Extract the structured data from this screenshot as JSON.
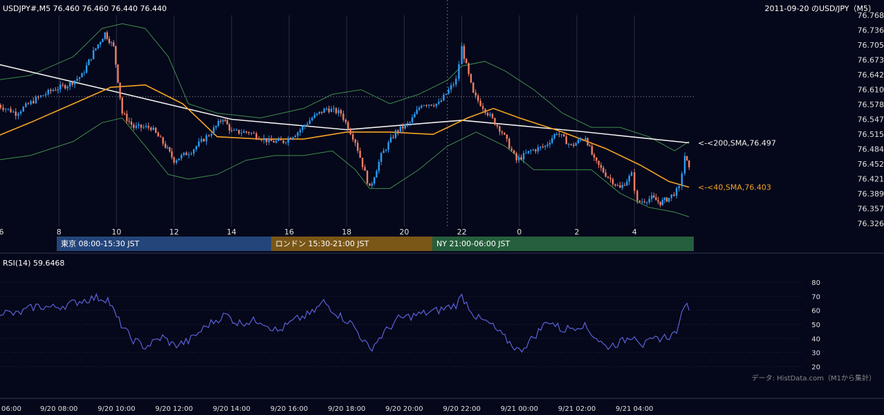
{
  "header": {
    "symbol_line": "USDJPY#,M5 76.460 76.460 76.440 76.440",
    "title": "2011-09-20 のUSD/JPY（M5）"
  },
  "sessions": [
    {
      "label": "東京 08:00-15:30 JST"
    },
    {
      "label": "ロンドン 15:30-21:00 JST"
    },
    {
      "label": "NY 21:00-06:00 JST"
    }
  ],
  "rsi_label": "RSI(14) 59.6468",
  "source_note": "データ: HistData.com（M1から集計）",
  "colors": {
    "background": "#05071a",
    "bull": "#2a9df4",
    "bear": "#ef7f63",
    "sma40": "#f5a623",
    "sma200": "#f2f2f2",
    "bollinger": "#3f8f4c",
    "rsi": "#5a63d8"
  },
  "chart_data": [
    {
      "type": "candlestick",
      "symbol": "USDJPY#",
      "timeframe": "M5",
      "x_tick_labels": [
        "6",
        "8",
        "10",
        "12",
        "14",
        "16",
        "18",
        "20",
        "22",
        "0",
        "2",
        "4"
      ],
      "y_tick_labels": [
        "76.768",
        "76.736",
        "76.705",
        "76.673",
        "76.642",
        "76.610",
        "76.578",
        "76.547",
        "76.515",
        "76.484",
        "76.452",
        "76.421",
        "76.389",
        "76.357",
        "76.326"
      ],
      "ylim": [
        76.326,
        76.768
      ],
      "reference_level": 76.595,
      "key_prices": [
        {
          "t": 5.8,
          "p": 76.58
        },
        {
          "t": 6.5,
          "p": 76.56
        },
        {
          "t": 7.2,
          "p": 76.59
        },
        {
          "t": 7.8,
          "p": 76.61
        },
        {
          "t": 8.3,
          "p": 76.62
        },
        {
          "t": 8.8,
          "p": 76.64
        },
        {
          "t": 9.2,
          "p": 76.69
        },
        {
          "t": 9.6,
          "p": 76.73
        },
        {
          "t": 9.9,
          "p": 76.7
        },
        {
          "t": 10.2,
          "p": 76.56
        },
        {
          "t": 10.6,
          "p": 76.53
        },
        {
          "t": 11.2,
          "p": 76.53
        },
        {
          "t": 11.7,
          "p": 76.49
        },
        {
          "t": 12.0,
          "p": 76.46
        },
        {
          "t": 12.6,
          "p": 76.48
        },
        {
          "t": 13.3,
          "p": 76.52
        },
        {
          "t": 13.7,
          "p": 76.55
        },
        {
          "t": 14.0,
          "p": 76.52
        },
        {
          "t": 14.6,
          "p": 76.52
        },
        {
          "t": 15.3,
          "p": 76.5
        },
        {
          "t": 15.8,
          "p": 76.5
        },
        {
          "t": 16.3,
          "p": 76.52
        },
        {
          "t": 16.8,
          "p": 76.55
        },
        {
          "t": 17.3,
          "p": 76.57
        },
        {
          "t": 17.8,
          "p": 76.56
        },
        {
          "t": 18.3,
          "p": 76.5
        },
        {
          "t": 18.8,
          "p": 76.4
        },
        {
          "t": 19.2,
          "p": 76.47
        },
        {
          "t": 19.7,
          "p": 76.52
        },
        {
          "t": 20.2,
          "p": 76.54
        },
        {
          "t": 20.6,
          "p": 76.58
        },
        {
          "t": 21.2,
          "p": 76.58
        },
        {
          "t": 21.8,
          "p": 76.63
        },
        {
          "t": 22.0,
          "p": 76.7
        },
        {
          "t": 22.4,
          "p": 76.6
        },
        {
          "t": 22.9,
          "p": 76.56
        },
        {
          "t": 23.4,
          "p": 76.52
        },
        {
          "t": 23.9,
          "p": 76.46
        },
        {
          "t": 24.4,
          "p": 76.48
        },
        {
          "t": 24.9,
          "p": 76.49
        },
        {
          "t": 25.3,
          "p": 76.52
        },
        {
          "t": 25.8,
          "p": 76.49
        },
        {
          "t": 26.3,
          "p": 76.51
        },
        {
          "t": 26.6,
          "p": 76.46
        },
        {
          "t": 27.0,
          "p": 76.43
        },
        {
          "t": 27.5,
          "p": 76.4
        },
        {
          "t": 27.9,
          "p": 76.43
        },
        {
          "t": 28.1,
          "p": 76.37
        },
        {
          "t": 28.6,
          "p": 76.38
        },
        {
          "t": 28.9,
          "p": 76.37
        },
        {
          "t": 29.2,
          "p": 76.38
        },
        {
          "t": 29.55,
          "p": 76.4
        },
        {
          "t": 29.75,
          "p": 76.47
        },
        {
          "t": 29.9,
          "p": 76.44
        }
      ],
      "sma_200": {
        "name": "<-<200,SMA,76.497",
        "last": 76.497,
        "points": [
          {
            "t": 5.8,
            "p": 76.665
          },
          {
            "t": 10,
            "p": 76.605
          },
          {
            "t": 14,
            "p": 76.547
          },
          {
            "t": 18,
            "p": 76.525
          },
          {
            "t": 22,
            "p": 76.545
          },
          {
            "t": 26,
            "p": 76.522
          },
          {
            "t": 29.9,
            "p": 76.497
          }
        ]
      },
      "sma_40": {
        "name": "<-<40,SMA,76.403",
        "last": 76.403,
        "points": [
          {
            "t": 5.8,
            "p": 76.51
          },
          {
            "t": 7,
            "p": 76.54
          },
          {
            "t": 8.5,
            "p": 76.58
          },
          {
            "t": 9.8,
            "p": 76.615
          },
          {
            "t": 11,
            "p": 76.62
          },
          {
            "t": 12.3,
            "p": 76.58
          },
          {
            "t": 13.5,
            "p": 76.51
          },
          {
            "t": 15,
            "p": 76.505
          },
          {
            "t": 16.5,
            "p": 76.505
          },
          {
            "t": 18,
            "p": 76.52
          },
          {
            "t": 19.5,
            "p": 76.52
          },
          {
            "t": 21,
            "p": 76.515
          },
          {
            "t": 22.2,
            "p": 76.55
          },
          {
            "t": 23.1,
            "p": 76.57
          },
          {
            "t": 24,
            "p": 76.55
          },
          {
            "t": 25.5,
            "p": 76.52
          },
          {
            "t": 27,
            "p": 76.485
          },
          {
            "t": 28.2,
            "p": 76.45
          },
          {
            "t": 29.2,
            "p": 76.415
          },
          {
            "t": 29.9,
            "p": 76.403
          }
        ]
      },
      "bollinger_upper": [
        {
          "t": 5.8,
          "p": 76.63
        },
        {
          "t": 7,
          "p": 76.64
        },
        {
          "t": 8.5,
          "p": 76.68
        },
        {
          "t": 9.5,
          "p": 76.74
        },
        {
          "t": 10.2,
          "p": 76.75
        },
        {
          "t": 11,
          "p": 76.74
        },
        {
          "t": 11.8,
          "p": 76.68
        },
        {
          "t": 12.5,
          "p": 76.58
        },
        {
          "t": 13.5,
          "p": 76.56
        },
        {
          "t": 15,
          "p": 76.55
        },
        {
          "t": 16.5,
          "p": 76.57
        },
        {
          "t": 17.5,
          "p": 76.6
        },
        {
          "t": 18.5,
          "p": 76.61
        },
        {
          "t": 19.5,
          "p": 76.58
        },
        {
          "t": 20.5,
          "p": 76.6
        },
        {
          "t": 21.5,
          "p": 76.63
        },
        {
          "t": 22,
          "p": 76.66
        },
        {
          "t": 22.8,
          "p": 76.67
        },
        {
          "t": 23.5,
          "p": 76.65
        },
        {
          "t": 24.5,
          "p": 76.61
        },
        {
          "t": 25.5,
          "p": 76.56
        },
        {
          "t": 26.5,
          "p": 76.53
        },
        {
          "t": 27.5,
          "p": 76.53
        },
        {
          "t": 28.5,
          "p": 76.51
        },
        {
          "t": 29.4,
          "p": 76.48
        },
        {
          "t": 29.9,
          "p": 76.5
        }
      ],
      "bollinger_lower": [
        {
          "t": 5.8,
          "p": 76.46
        },
        {
          "t": 7,
          "p": 76.47
        },
        {
          "t": 8.5,
          "p": 76.5
        },
        {
          "t": 9.5,
          "p": 76.54
        },
        {
          "t": 10.2,
          "p": 76.55
        },
        {
          "t": 11,
          "p": 76.49
        },
        {
          "t": 11.8,
          "p": 76.43
        },
        {
          "t": 12.5,
          "p": 76.42
        },
        {
          "t": 13.5,
          "p": 76.43
        },
        {
          "t": 14.5,
          "p": 76.46
        },
        {
          "t": 15.5,
          "p": 76.47
        },
        {
          "t": 16.5,
          "p": 76.47
        },
        {
          "t": 17.5,
          "p": 76.48
        },
        {
          "t": 18.3,
          "p": 76.44
        },
        {
          "t": 18.8,
          "p": 76.4
        },
        {
          "t": 19.5,
          "p": 76.4
        },
        {
          "t": 20.5,
          "p": 76.44
        },
        {
          "t": 21.5,
          "p": 76.49
        },
        {
          "t": 22.5,
          "p": 76.52
        },
        {
          "t": 23.5,
          "p": 76.49
        },
        {
          "t": 24.5,
          "p": 76.44
        },
        {
          "t": 25.5,
          "p": 76.44
        },
        {
          "t": 26.5,
          "p": 76.44
        },
        {
          "t": 27.5,
          "p": 76.39
        },
        {
          "t": 28.5,
          "p": 76.36
        },
        {
          "t": 29.4,
          "p": 76.35
        },
        {
          "t": 29.9,
          "p": 76.34
        }
      ]
    },
    {
      "type": "line",
      "name": "RSI(14)",
      "last": 59.6468,
      "x_tick_labels": [
        "06:00",
        "9/20 08:00",
        "9/20 10:00",
        "9/20 12:00",
        "9/20 14:00",
        "9/20 16:00",
        "9/20 18:00",
        "9/20 20:00",
        "9/20 22:00",
        "9/21 00:00",
        "9/21 02:00",
        "9/21 04:00"
      ],
      "y_tick_labels": [
        "80",
        "70",
        "60",
        "50",
        "40",
        "30",
        "20"
      ],
      "ylim": [
        20,
        80
      ],
      "key_values": [
        {
          "t": 5.8,
          "v": 60
        },
        {
          "t": 6.5,
          "v": 57
        },
        {
          "t": 7.2,
          "v": 63
        },
        {
          "t": 7.8,
          "v": 62
        },
        {
          "t": 8.3,
          "v": 64
        },
        {
          "t": 8.8,
          "v": 67
        },
        {
          "t": 9.3,
          "v": 69
        },
        {
          "t": 9.7,
          "v": 68
        },
        {
          "t": 10.0,
          "v": 55
        },
        {
          "t": 10.5,
          "v": 40
        },
        {
          "t": 11.0,
          "v": 34
        },
        {
          "t": 11.6,
          "v": 41
        },
        {
          "t": 12.0,
          "v": 35
        },
        {
          "t": 12.5,
          "v": 38
        },
        {
          "t": 13.2,
          "v": 50
        },
        {
          "t": 13.8,
          "v": 57
        },
        {
          "t": 14.2,
          "v": 51
        },
        {
          "t": 15.0,
          "v": 53
        },
        {
          "t": 15.6,
          "v": 45
        },
        {
          "t": 16.2,
          "v": 53
        },
        {
          "t": 16.8,
          "v": 58
        },
        {
          "t": 17.2,
          "v": 66
        },
        {
          "t": 17.7,
          "v": 57
        },
        {
          "t": 18.2,
          "v": 50
        },
        {
          "t": 18.8,
          "v": 32
        },
        {
          "t": 19.3,
          "v": 44
        },
        {
          "t": 19.8,
          "v": 54
        },
        {
          "t": 20.5,
          "v": 57
        },
        {
          "t": 21.2,
          "v": 60
        },
        {
          "t": 21.8,
          "v": 64
        },
        {
          "t": 22.0,
          "v": 70
        },
        {
          "t": 22.5,
          "v": 55
        },
        {
          "t": 23.0,
          "v": 50
        },
        {
          "t": 23.5,
          "v": 40
        },
        {
          "t": 24.0,
          "v": 31
        },
        {
          "t": 24.5,
          "v": 41
        },
        {
          "t": 25.0,
          "v": 53
        },
        {
          "t": 25.5,
          "v": 46
        },
        {
          "t": 26.2,
          "v": 50
        },
        {
          "t": 26.6,
          "v": 42
        },
        {
          "t": 27.0,
          "v": 34
        },
        {
          "t": 27.5,
          "v": 37
        },
        {
          "t": 28.0,
          "v": 43
        },
        {
          "t": 28.3,
          "v": 35
        },
        {
          "t": 28.8,
          "v": 40
        },
        {
          "t": 29.3,
          "v": 42
        },
        {
          "t": 29.55,
          "v": 48
        },
        {
          "t": 29.75,
          "v": 66
        },
        {
          "t": 29.9,
          "v": 60
        }
      ]
    }
  ]
}
